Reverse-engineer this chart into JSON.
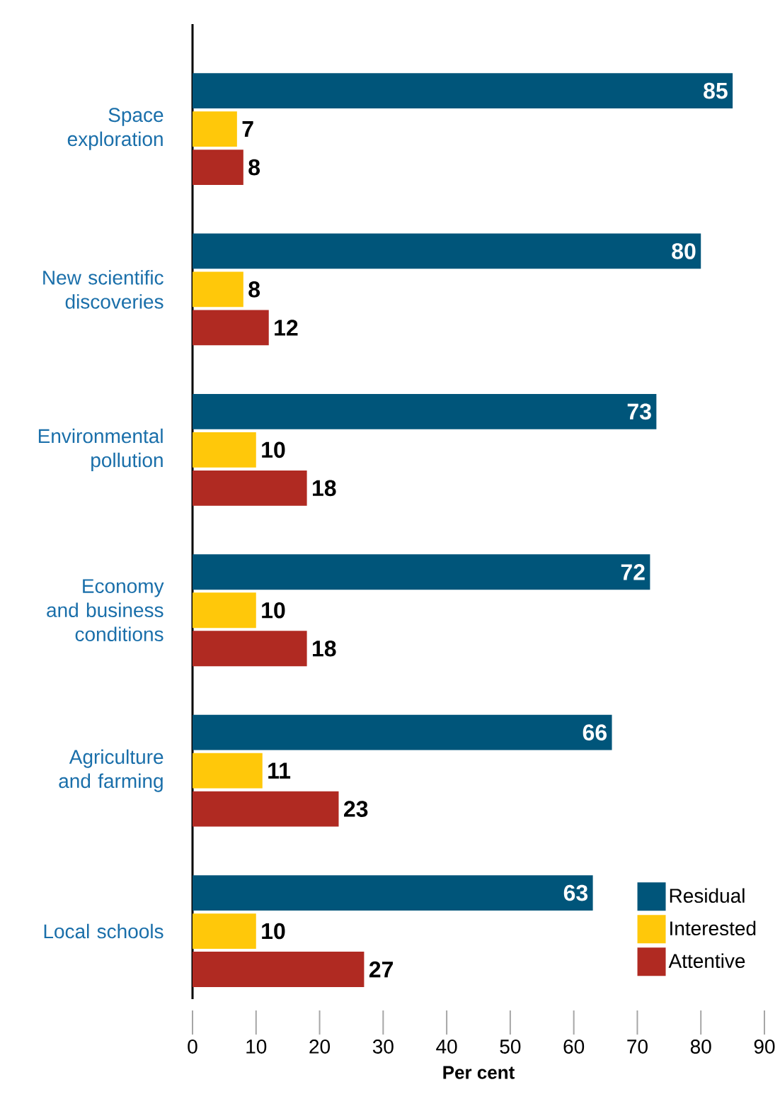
{
  "chart_data": {
    "type": "bar",
    "orientation": "horizontal",
    "categories": [
      "Space exploration",
      "New scientific discoveries",
      "Environmental pollution",
      "Economy and business conditions",
      "Agriculture and farming",
      "Local schools"
    ],
    "series": [
      {
        "name": "Residual",
        "color": "#00557a",
        "values": [
          85,
          80,
          73,
          72,
          66,
          63
        ]
      },
      {
        "name": "Interested",
        "color": "#ffc80a",
        "values": [
          7,
          8,
          10,
          10,
          11,
          10
        ]
      },
      {
        "name": "Attentive",
        "color": "#b02a22",
        "values": [
          8,
          12,
          18,
          18,
          23,
          27
        ]
      }
    ],
    "xlim": [
      0,
      90
    ],
    "xticks": [
      0,
      10,
      20,
      30,
      40,
      50,
      60,
      70,
      80,
      90
    ],
    "xlabel": "Per cent",
    "legend": "bottom right",
    "data_labels": true,
    "grid": false
  }
}
